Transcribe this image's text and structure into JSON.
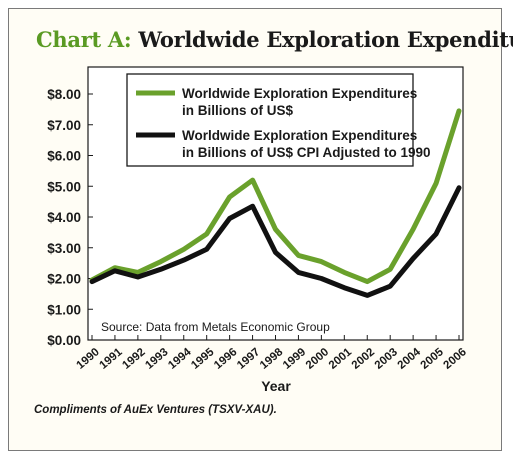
{
  "title_prefix": "Chart A:",
  "title_main": " Worldwide Exploration Expenditures",
  "credit": "Compliments of AuEx Ventures (TSXV-XAU).",
  "chart_data": {
    "type": "line",
    "title": "Chart A: Worldwide Exploration Expenditures",
    "xlabel": "Year",
    "ylabel": "",
    "categories": [
      "1990",
      "1991",
      "1992",
      "1993",
      "1994",
      "1995",
      "1996",
      "1997",
      "1998",
      "1999",
      "2000",
      "2001",
      "2002",
      "2003",
      "2004",
      "2005",
      "2006"
    ],
    "ylim": [
      0,
      8
    ],
    "yticks": [
      "$0.00",
      "$1.00",
      "$2.00",
      "$3.00",
      "$4.00",
      "$5.00",
      "$6.00",
      "$7.00",
      "$8.00"
    ],
    "grid": false,
    "legend_position": "top-right",
    "series": [
      {
        "name": "Worldwide Exploration Expenditures in Billions of US$",
        "legend_lines": [
          "Worldwide Exploration Expenditures",
          "in Billions of US$"
        ],
        "color": "#6aa12c",
        "values": [
          1.95,
          2.35,
          2.2,
          2.55,
          2.95,
          3.45,
          4.65,
          5.2,
          3.6,
          2.75,
          2.55,
          2.2,
          1.9,
          2.3,
          3.6,
          5.1,
          7.45
        ]
      },
      {
        "name": "Worldwide Exploration Expenditures in Billions of US$ CPI Adjusted to 1990",
        "legend_lines": [
          "Worldwide Exploration Expenditures",
          "in Billions of US$ CPI Adjusted to 1990"
        ],
        "color": "#111111",
        "values": [
          1.9,
          2.25,
          2.05,
          2.3,
          2.6,
          2.95,
          3.95,
          4.35,
          2.85,
          2.2,
          2.0,
          1.7,
          1.45,
          1.75,
          2.65,
          3.45,
          4.95
        ]
      }
    ],
    "annotations": [
      "Source: Data from Metals Economic Group"
    ]
  }
}
